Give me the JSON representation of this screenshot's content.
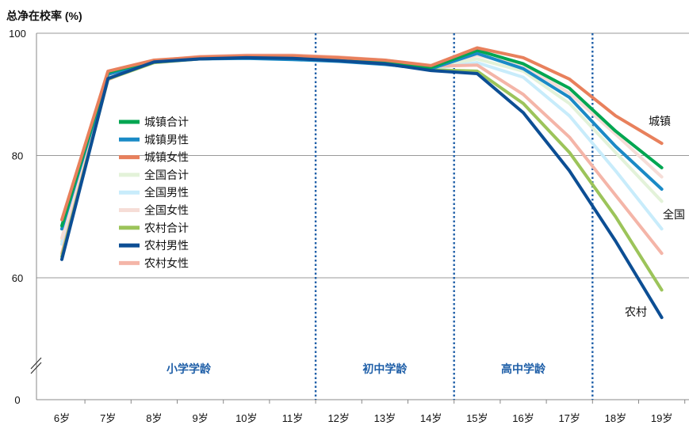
{
  "chart_data": {
    "type": "line",
    "title": "总净在校率 (%)",
    "categories": [
      "6岁",
      "7岁",
      "8岁",
      "9岁",
      "10岁",
      "11岁",
      "12岁",
      "13岁",
      "14岁",
      "15岁",
      "16岁",
      "17岁",
      "18岁",
      "19岁"
    ],
    "y_ticks": [
      "100",
      "80",
      "60",
      "0"
    ],
    "ylim": [
      50,
      100
    ],
    "axis_break": true,
    "grid": true,
    "legend_position": "left-center",
    "stages": [
      {
        "label": "小学学龄"
      },
      {
        "label": "初中学龄"
      },
      {
        "label": "高中学龄"
      }
    ],
    "end_labels": [
      {
        "label": "城镇",
        "series": "城镇女性"
      },
      {
        "label": "全国",
        "series": "全国男性"
      },
      {
        "label": "农村",
        "series": "农村男性"
      }
    ],
    "series": [
      {
        "name": "城镇合计",
        "color": "#00a651",
        "values": [
          68.5,
          93.6,
          95.5,
          96.0,
          96.2,
          96.1,
          95.8,
          95.3,
          94.4,
          97.2,
          95.0,
          91.0,
          84.0,
          78.0
        ]
      },
      {
        "name": "城镇男性",
        "color": "#1a8ac6",
        "values": [
          68.0,
          93.3,
          95.3,
          95.8,
          95.9,
          95.7,
          95.4,
          94.9,
          94.2,
          96.7,
          94.2,
          89.5,
          81.5,
          74.5
        ]
      },
      {
        "name": "城镇女性",
        "color": "#e8805c",
        "values": [
          69.5,
          93.8,
          95.6,
          96.1,
          96.3,
          96.3,
          96.0,
          95.6,
          94.7,
          97.6,
          96.0,
          92.5,
          86.5,
          82.0
        ]
      },
      {
        "name": "全国合计",
        "color": "#e3f2d9",
        "values": [
          66.0,
          93.0,
          95.4,
          96.0,
          96.2,
          96.1,
          95.8,
          95.3,
          94.4,
          95.8,
          93.8,
          88.5,
          80.5,
          72.5
        ]
      },
      {
        "name": "全国男性",
        "color": "#c8ecfb",
        "values": [
          65.5,
          92.8,
          95.3,
          95.9,
          96.1,
          96.0,
          95.6,
          95.1,
          94.2,
          95.2,
          92.8,
          86.5,
          77.5,
          68.0
        ]
      },
      {
        "name": "全国女性",
        "color": "#f6ddd7",
        "values": [
          66.5,
          93.2,
          95.5,
          96.1,
          96.3,
          96.2,
          95.9,
          95.4,
          94.6,
          96.4,
          94.8,
          90.2,
          83.5,
          76.5
        ]
      },
      {
        "name": "农村合计",
        "color": "#9cc45a",
        "values": [
          63.5,
          92.5,
          95.2,
          95.8,
          96.0,
          95.9,
          95.5,
          95.0,
          94.0,
          93.8,
          88.5,
          80.5,
          70.0,
          58.0
        ]
      },
      {
        "name": "农村男性",
        "color": "#0c4e94",
        "values": [
          63.0,
          92.6,
          95.3,
          95.8,
          96.0,
          95.9,
          95.5,
          95.0,
          93.9,
          93.4,
          87.0,
          77.5,
          66.0,
          53.5
        ]
      },
      {
        "name": "农村女性",
        "color": "#f4b5a8",
        "values": [
          64.0,
          92.4,
          95.5,
          96.2,
          96.4,
          96.4,
          96.1,
          95.6,
          94.6,
          94.8,
          90.0,
          83.0,
          73.5,
          64.0
        ]
      }
    ]
  }
}
